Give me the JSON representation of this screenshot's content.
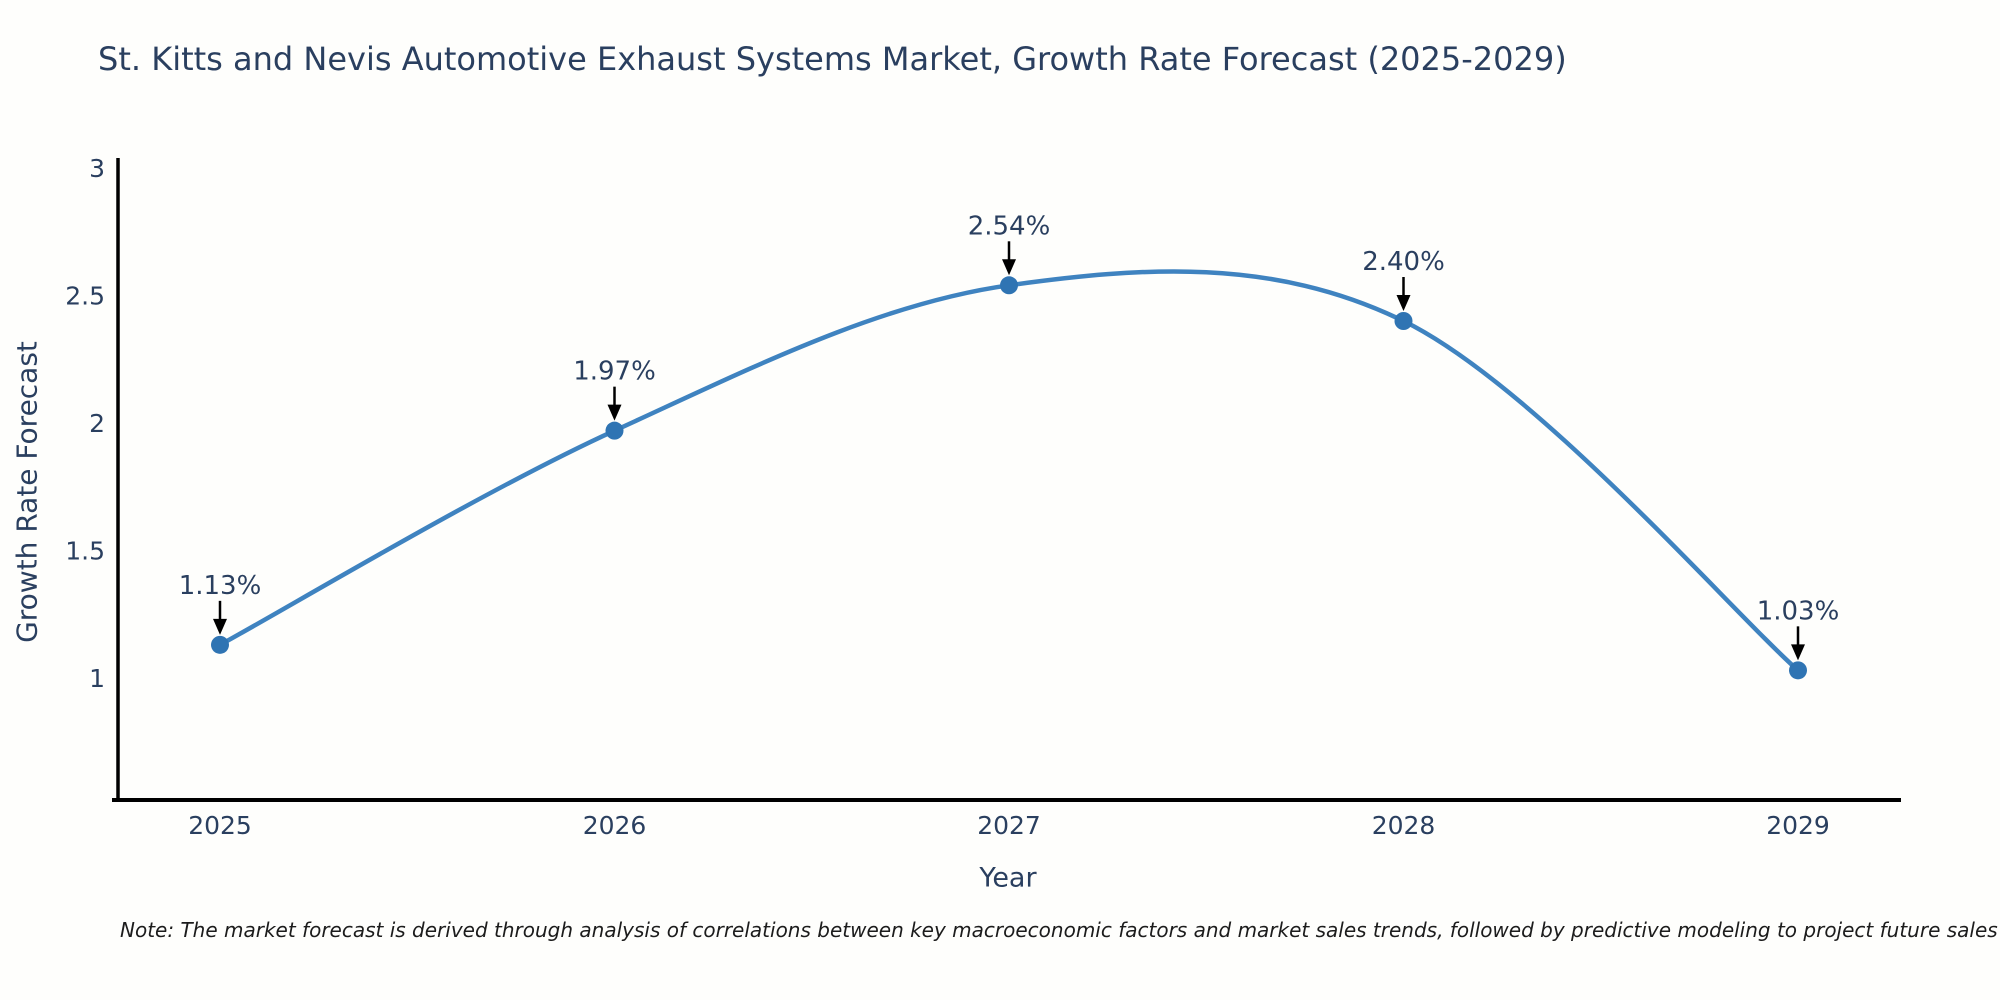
{
  "page": {
    "title": "St. Kitts and Nevis Automotive Exhaust Systems Market, Growth Rate Forecast (2025-2029)",
    "note": "Note: The market forecast is derived through analysis of correlations between key macroeconomic factors and market sales trends, followed by predictive modeling to project future sales"
  },
  "chart_data": {
    "type": "line",
    "title": "St. Kitts and Nevis Automotive Exhaust Systems Market, Growth Rate Forecast (2025-2029)",
    "xlabel": "Year",
    "ylabel": "Growth Rate Forecast",
    "x": [
      2025,
      2026,
      2027,
      2028,
      2029
    ],
    "values": [
      1.13,
      1.97,
      2.54,
      2.4,
      1.03
    ],
    "point_labels": [
      "1.13%",
      "1.97%",
      "2.54%",
      "2.40%",
      "1.03%"
    ],
    "xtick_labels": [
      "2025",
      "2026",
      "2027",
      "2028",
      "2029"
    ],
    "yticks": [
      1,
      1.5,
      2,
      2.5,
      3
    ],
    "ytick_labels": [
      "1",
      "1.5",
      "2",
      "2.5",
      "3"
    ],
    "ylim": [
      0.52,
      3.05
    ],
    "grid": false,
    "legend": false,
    "line_style": "smooth-spline",
    "marker": "circle",
    "annotation_style": "label-with-down-arrow",
    "colors": {
      "line": "#3f83c0",
      "marker": "#2f74b3",
      "text": "#2a3f5f",
      "axis": "#000000",
      "annotation_arrow": "#000000",
      "note_text": "#1c1c1c",
      "background": "#fefefc"
    }
  }
}
